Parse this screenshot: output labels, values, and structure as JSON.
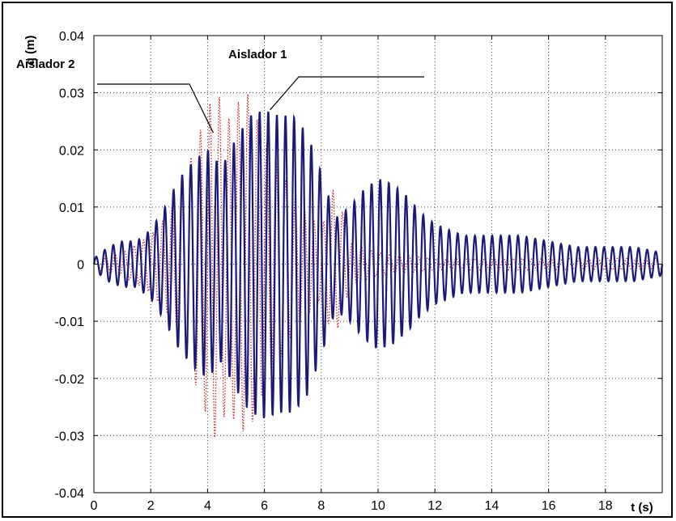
{
  "chart_data": {
    "type": "line",
    "title": "",
    "xlabel": "t (s)",
    "ylabel": "q (m)",
    "xlim": [
      0,
      20
    ],
    "ylim": [
      -0.04,
      0.04
    ],
    "grid": true,
    "xticks": [
      0,
      2,
      4,
      6,
      8,
      10,
      12,
      14,
      16,
      18
    ],
    "xtick_labels": [
      "0",
      "2",
      "4",
      "6",
      "8",
      "10",
      "12",
      "14",
      "16",
      "18"
    ],
    "yticks": [
      -0.04,
      -0.03,
      -0.02,
      -0.01,
      0,
      0.01,
      0.02,
      0.03,
      0.04
    ],
    "ytick_labels": [
      "-0.04",
      "-0.03",
      "-0.02",
      "-0.01",
      "0",
      "0.01",
      "0.02",
      "0.03",
      "0.04"
    ],
    "series": [
      {
        "name": "Aislador 1",
        "style": "solid",
        "color": "#1a1a7a",
        "frequency_hz": 3.3,
        "envelope": [
          [
            0.0,
            0.001
          ],
          [
            0.5,
            0.003
          ],
          [
            1.0,
            0.004
          ],
          [
            1.5,
            0.004
          ],
          [
            2.0,
            0.006
          ],
          [
            2.5,
            0.01
          ],
          [
            3.0,
            0.015
          ],
          [
            3.5,
            0.018
          ],
          [
            4.0,
            0.02
          ],
          [
            4.5,
            0.017
          ],
          [
            5.0,
            0.022
          ],
          [
            5.5,
            0.026
          ],
          [
            6.0,
            0.027
          ],
          [
            6.5,
            0.026
          ],
          [
            7.0,
            0.026
          ],
          [
            7.5,
            0.023
          ],
          [
            8.0,
            0.016
          ],
          [
            8.5,
            0.008
          ],
          [
            9.0,
            0.01
          ],
          [
            9.5,
            0.013
          ],
          [
            10.0,
            0.015
          ],
          [
            10.5,
            0.014
          ],
          [
            11.0,
            0.012
          ],
          [
            11.5,
            0.009
          ],
          [
            12.0,
            0.007
          ],
          [
            13.0,
            0.005
          ],
          [
            14.0,
            0.005
          ],
          [
            15.0,
            0.005
          ],
          [
            16.0,
            0.004
          ],
          [
            17.0,
            0.003
          ],
          [
            18.0,
            0.003
          ],
          [
            19.0,
            0.003
          ],
          [
            20.0,
            0.002
          ]
        ]
      },
      {
        "name": "Aislador 2",
        "style": "dotted",
        "color": "#c22a2a",
        "frequency_hz": 3.0,
        "envelope": [
          [
            0.0,
            0.001
          ],
          [
            1.0,
            0.002
          ],
          [
            2.0,
            0.005
          ],
          [
            2.5,
            0.008
          ],
          [
            3.0,
            0.012
          ],
          [
            3.5,
            0.02
          ],
          [
            4.0,
            0.027
          ],
          [
            4.3,
            0.031
          ],
          [
            4.7,
            0.025
          ],
          [
            5.0,
            0.028
          ],
          [
            5.4,
            0.03
          ],
          [
            6.0,
            0.022
          ],
          [
            7.0,
            0.012
          ],
          [
            8.0,
            0.006
          ],
          [
            8.4,
            0.013
          ],
          [
            8.7,
            0.01
          ],
          [
            9.0,
            0.004
          ],
          [
            10.0,
            0.002
          ],
          [
            12.0,
            0.001
          ],
          [
            20.0,
            0.001
          ]
        ]
      }
    ],
    "annotations": [
      {
        "text": "Aislador 2",
        "target": "Aislador 2",
        "points_to": [
          4.2,
          0.023
        ]
      },
      {
        "text": "Aislador 1",
        "target": "Aislador 1",
        "points_to": [
          6.2,
          0.027
        ]
      }
    ]
  }
}
